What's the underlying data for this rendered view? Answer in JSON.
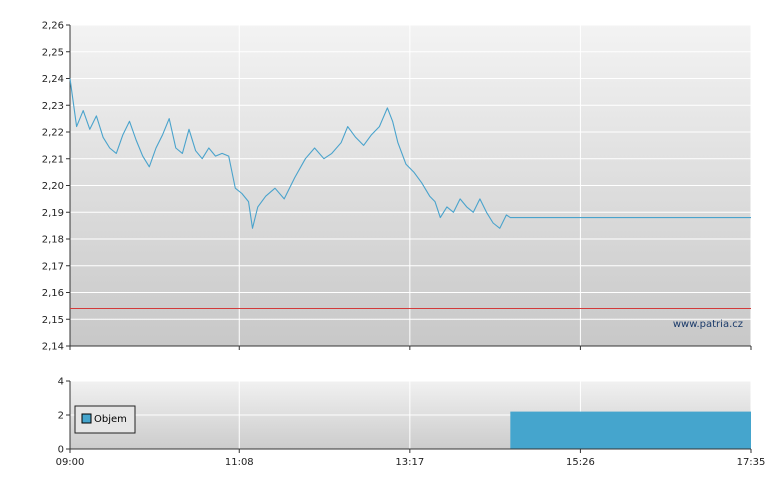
{
  "chart_data": [
    {
      "type": "line",
      "x_ticks": [
        "09:00",
        "11:08",
        "13:17",
        "15:26",
        "17:35"
      ],
      "ylim": [
        2.14,
        2.26
      ],
      "y_ticks": [
        "2,14",
        "2,15",
        "2,16",
        "2,17",
        "2,18",
        "2,19",
        "2,20",
        "2,21",
        "2,22",
        "2,23",
        "2,24",
        "2,25",
        "2,26"
      ],
      "reference_line": 2.154,
      "grid": true,
      "watermark": "www.patria.cz",
      "series": [
        {
          "color": "#4aa3cc",
          "points": [
            [
              "09:00",
              2.24
            ],
            [
              "09:05",
              2.222
            ],
            [
              "09:10",
              2.228
            ],
            [
              "09:15",
              2.221
            ],
            [
              "09:20",
              2.226
            ],
            [
              "09:25",
              2.218
            ],
            [
              "09:30",
              2.214
            ],
            [
              "09:35",
              2.212
            ],
            [
              "09:40",
              2.219
            ],
            [
              "09:45",
              2.224
            ],
            [
              "09:50",
              2.217
            ],
            [
              "09:55",
              2.211
            ],
            [
              "10:00",
              2.207
            ],
            [
              "10:05",
              2.214
            ],
            [
              "10:10",
              2.219
            ],
            [
              "10:15",
              2.225
            ],
            [
              "10:20",
              2.214
            ],
            [
              "10:25",
              2.212
            ],
            [
              "10:30",
              2.221
            ],
            [
              "10:35",
              2.213
            ],
            [
              "10:40",
              2.21
            ],
            [
              "10:45",
              2.214
            ],
            [
              "10:50",
              2.211
            ],
            [
              "10:55",
              2.212
            ],
            [
              "11:00",
              2.211
            ],
            [
              "11:05",
              2.199
            ],
            [
              "11:10",
              2.197
            ],
            [
              "11:15",
              2.194
            ],
            [
              "11:18",
              2.184
            ],
            [
              "11:22",
              2.192
            ],
            [
              "11:28",
              2.196
            ],
            [
              "11:35",
              2.199
            ],
            [
              "11:42",
              2.195
            ],
            [
              "11:50",
              2.203
            ],
            [
              "11:58",
              2.21
            ],
            [
              "12:05",
              2.214
            ],
            [
              "12:12",
              2.21
            ],
            [
              "12:18",
              2.212
            ],
            [
              "12:25",
              2.216
            ],
            [
              "12:30",
              2.222
            ],
            [
              "12:36",
              2.218
            ],
            [
              "12:42",
              2.215
            ],
            [
              "12:48",
              2.219
            ],
            [
              "12:54",
              2.222
            ],
            [
              "13:00",
              2.229
            ],
            [
              "13:04",
              2.224
            ],
            [
              "13:08",
              2.216
            ],
            [
              "13:14",
              2.208
            ],
            [
              "13:20",
              2.205
            ],
            [
              "13:26",
              2.201
            ],
            [
              "13:32",
              2.196
            ],
            [
              "13:36",
              2.194
            ],
            [
              "13:40",
              2.188
            ],
            [
              "13:45",
              2.192
            ],
            [
              "13:50",
              2.19
            ],
            [
              "13:55",
              2.195
            ],
            [
              "14:00",
              2.192
            ],
            [
              "14:05",
              2.19
            ],
            [
              "14:10",
              2.195
            ],
            [
              "14:15",
              2.19
            ],
            [
              "14:20",
              2.186
            ],
            [
              "14:25",
              2.184
            ],
            [
              "14:30",
              2.189
            ],
            [
              "14:33",
              2.188
            ],
            [
              "17:35",
              2.188
            ]
          ]
        }
      ]
    },
    {
      "type": "bar",
      "ylim": [
        0,
        4
      ],
      "y_ticks": [
        "0",
        "2",
        "4"
      ],
      "x_ticks": [
        "09:00",
        "11:08",
        "13:17",
        "15:26",
        "17:35"
      ],
      "grid": true,
      "legend": [
        "Objem"
      ],
      "legend_position": "left",
      "series": [
        {
          "name": "Objem",
          "color": "#45a5cd",
          "bars": [
            {
              "from": "14:33",
              "to": "17:35",
              "value": 2.2
            }
          ]
        }
      ]
    }
  ]
}
